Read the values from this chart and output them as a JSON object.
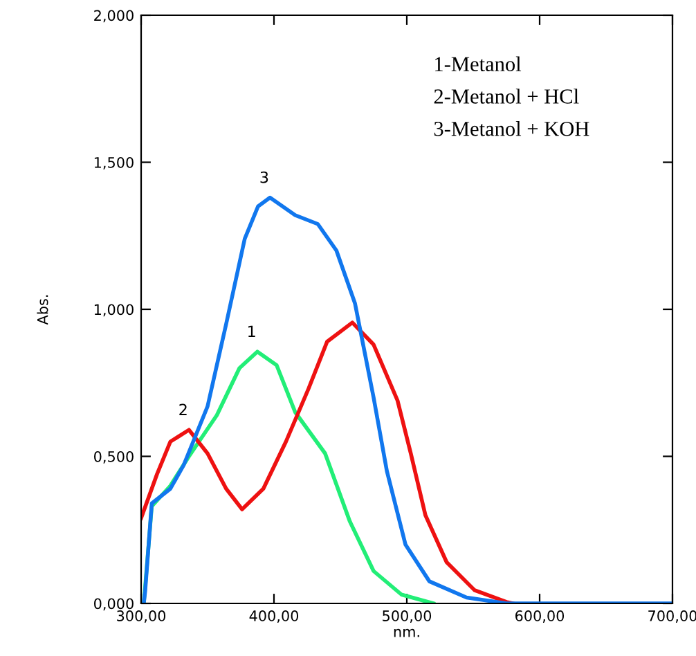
{
  "chart_data": {
    "type": "line",
    "xlabel": "nm.",
    "ylabel": "Abs.",
    "xlim": [
      300,
      700
    ],
    "ylim": [
      0,
      2
    ],
    "xticks": [
      {
        "value": 300,
        "label": "300,00"
      },
      {
        "value": 400,
        "label": "400,00"
      },
      {
        "value": 500,
        "label": "500,00"
      },
      {
        "value": 600,
        "label": "600,00"
      },
      {
        "value": 700,
        "label": "700,00"
      }
    ],
    "yticks": [
      {
        "value": 0,
        "label": "0,000"
      },
      {
        "value": 0.5,
        "label": "0,500"
      },
      {
        "value": 1,
        "label": "1,000"
      },
      {
        "value": 1.5,
        "label": "1,500"
      },
      {
        "value": 2,
        "label": "2,000"
      }
    ],
    "grid": false,
    "legend": false,
    "series": [
      {
        "color": "#22ee77",
        "x": [
          302,
          308,
          322,
          336,
          357,
          374,
          387.5,
          402,
          416,
          438.5,
          457,
          475,
          496,
          520
        ],
        "values": [
          0,
          0.33,
          0.4,
          0.5,
          0.64,
          0.8,
          0.856,
          0.81,
          0.65,
          0.51,
          0.28,
          0.11,
          0.03,
          0
        ]
      },
      {
        "color": "#ee1111",
        "x": [
          300,
          312,
          322,
          336,
          350,
          364,
          376,
          392,
          409,
          426,
          440,
          459,
          475,
          493,
          503,
          514,
          530,
          551,
          575,
          580
        ],
        "values": [
          0.29,
          0.44,
          0.55,
          0.59,
          0.51,
          0.39,
          0.32,
          0.39,
          0.55,
          0.73,
          0.89,
          0.955,
          0.88,
          0.69,
          0.51,
          0.3,
          0.14,
          0.045,
          0.005,
          0
        ]
      },
      {
        "color": "#1177ee",
        "x": [
          302,
          303,
          308,
          322,
          332,
          350,
          364,
          378,
          388,
          397,
          416,
          433,
          447,
          461,
          475,
          485,
          499,
          517,
          545,
          575,
          700
        ],
        "values": [
          0,
          0.04,
          0.34,
          0.39,
          0.47,
          0.67,
          0.95,
          1.24,
          1.35,
          1.38,
          1.32,
          1.29,
          1.2,
          1.02,
          0.7,
          0.45,
          0.2,
          0.075,
          0.02,
          0,
          0
        ]
      }
    ],
    "annotations": [
      {
        "text": "1",
        "x": 387.5,
        "y": 0.856
      },
      {
        "text": "2",
        "x": 336,
        "y": 0.59
      },
      {
        "text": "3",
        "x": 397,
        "y": 1.38
      },
      "1-Metanol",
      "2-Metanol + HCl",
      "3-Metanol + KOH"
    ]
  }
}
